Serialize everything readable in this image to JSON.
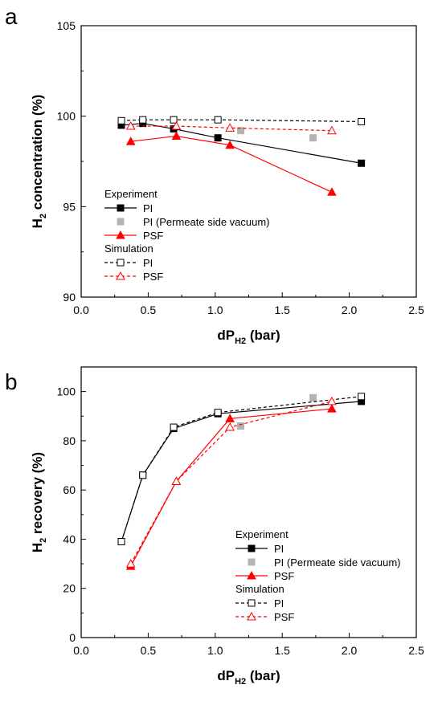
{
  "chart_data": [
    {
      "panel_label": "a",
      "type": "line",
      "xlabel": "dP",
      "xlabel_sub": "H2",
      "xlabel_suffix": " (bar)",
      "ylabel": "H",
      "ylabel_sub": "2",
      "ylabel_suffix": " concentration (%)",
      "xlim": [
        0.0,
        2.5
      ],
      "ylim": [
        90,
        105
      ],
      "xticks": [
        "0.0",
        "0.5",
        "1.0",
        "1.5",
        "2.0",
        "2.5"
      ],
      "yticks": [
        "90",
        "95",
        "100",
        "105"
      ],
      "grid": false,
      "legend_position": "lower-left",
      "legend": {
        "experiment_title": "Experiment",
        "simulation_title": "Simulation"
      },
      "series": [
        {
          "name": "PI",
          "group": "Experiment",
          "marker": "filled-square",
          "line": "solid",
          "color": "#000000",
          "x": [
            0.3,
            0.46,
            0.69,
            1.02,
            2.09
          ],
          "y": [
            99.5,
            99.6,
            99.3,
            98.8,
            97.4
          ]
        },
        {
          "name": "PI (Permeate side vacuum)",
          "group": "Experiment",
          "marker": "filled-square",
          "line": "none",
          "color": "#b3b3b3",
          "x": [
            1.19,
            1.73
          ],
          "y": [
            99.2,
            98.8
          ]
        },
        {
          "name": "PSF",
          "group": "Experiment",
          "marker": "filled-triangle",
          "line": "solid",
          "color": "#ff0000",
          "x": [
            0.37,
            0.71,
            1.11,
            1.87
          ],
          "y": [
            98.6,
            98.9,
            98.4,
            95.8
          ]
        },
        {
          "name": "PI",
          "group": "Simulation",
          "marker": "open-square",
          "line": "dashed",
          "color": "#000000",
          "x": [
            0.3,
            0.46,
            0.69,
            1.02,
            2.09
          ],
          "y": [
            99.75,
            99.8,
            99.8,
            99.8,
            99.7
          ]
        },
        {
          "name": "PSF",
          "group": "Simulation",
          "marker": "open-triangle",
          "line": "dashed",
          "color": "#ff0000",
          "x": [
            0.37,
            0.71,
            1.11,
            1.87
          ],
          "y": [
            99.45,
            99.45,
            99.35,
            99.2
          ]
        }
      ]
    },
    {
      "panel_label": "b",
      "type": "line",
      "xlabel": "dP",
      "xlabel_sub": "H2",
      "xlabel_suffix": " (bar)",
      "ylabel": "H",
      "ylabel_sub": "2",
      "ylabel_suffix": " recovery (%)",
      "xlim": [
        0.0,
        2.5
      ],
      "ylim": [
        0,
        110
      ],
      "xticks": [
        "0.0",
        "0.5",
        "1.0",
        "1.5",
        "2.0",
        "2.5"
      ],
      "yticks": [
        "0",
        "20",
        "40",
        "60",
        "80",
        "100"
      ],
      "grid": false,
      "legend_position": "lower-right",
      "legend": {
        "experiment_title": "Experiment",
        "simulation_title": "Simulation"
      },
      "series": [
        {
          "name": "PI",
          "group": "Experiment",
          "marker": "filled-square",
          "line": "solid",
          "color": "#000000",
          "x": [
            0.3,
            0.46,
            0.69,
            1.02,
            2.09
          ],
          "y": [
            39,
            66,
            85,
            91,
            96
          ]
        },
        {
          "name": "PI (Permeate side vacuum)",
          "group": "Experiment",
          "marker": "filled-square",
          "line": "none",
          "color": "#b3b3b3",
          "x": [
            1.19,
            1.73
          ],
          "y": [
            86,
            97.5
          ]
        },
        {
          "name": "PSF",
          "group": "Experiment",
          "marker": "filled-triangle",
          "line": "solid",
          "color": "#ff0000",
          "x": [
            0.37,
            0.71,
            1.11,
            1.87
          ],
          "y": [
            29,
            63.5,
            89,
            93
          ]
        },
        {
          "name": "PI",
          "group": "Simulation",
          "marker": "open-square",
          "line": "dashed",
          "color": "#000000",
          "x": [
            0.3,
            0.46,
            0.69,
            1.02,
            2.09
          ],
          "y": [
            39,
            66,
            85.5,
            91.5,
            98
          ]
        },
        {
          "name": "PSF",
          "group": "Simulation",
          "marker": "open-triangle",
          "line": "dashed",
          "color": "#ff0000",
          "x": [
            0.37,
            0.71,
            1.11,
            1.87
          ],
          "y": [
            30,
            63.5,
            85.5,
            96
          ]
        }
      ]
    }
  ]
}
